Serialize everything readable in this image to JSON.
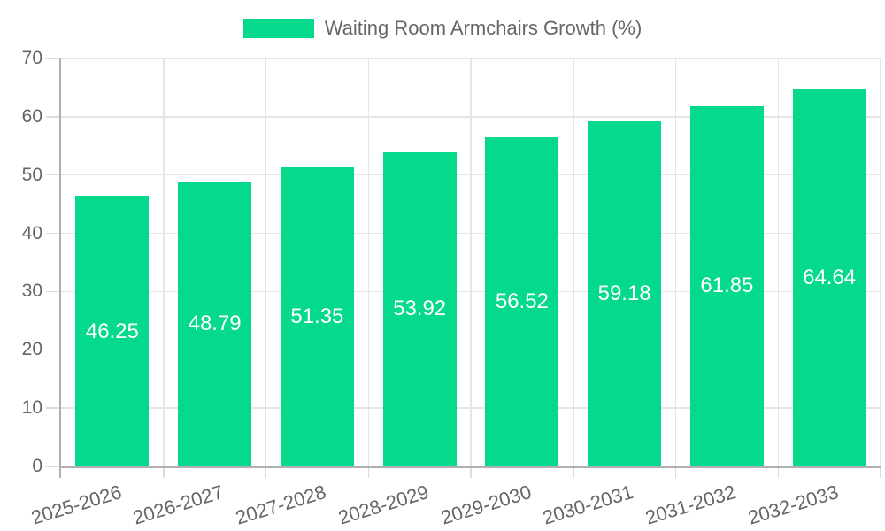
{
  "chart_data": {
    "type": "bar",
    "title": "Waiting Room Armchairs Growth (%)",
    "categories": [
      "2025-2026",
      "2026-2027",
      "2027-2028",
      "2028-2029",
      "2029-2030",
      "2030-2031",
      "2031-2032",
      "2032-2033"
    ],
    "values": [
      46.25,
      48.79,
      51.35,
      53.92,
      56.52,
      59.18,
      61.85,
      64.64
    ],
    "value_labels": [
      "46.25",
      "48.79",
      "51.35",
      "53.92",
      "56.52",
      "59.18",
      "61.85",
      "64.64"
    ],
    "xlabel": "",
    "ylabel": "",
    "ylim": [
      0,
      70
    ],
    "y_ticks": [
      0,
      10,
      20,
      30,
      40,
      50,
      60,
      70
    ],
    "grid": true,
    "legend_position": "top",
    "colors": {
      "bar": "#05DA8C",
      "data_label": "#ffffff",
      "axis_text": "#666666",
      "grid": "#e5e5e5",
      "tick": "#dcdcdc",
      "axis_line": "#b0b0b0"
    }
  }
}
